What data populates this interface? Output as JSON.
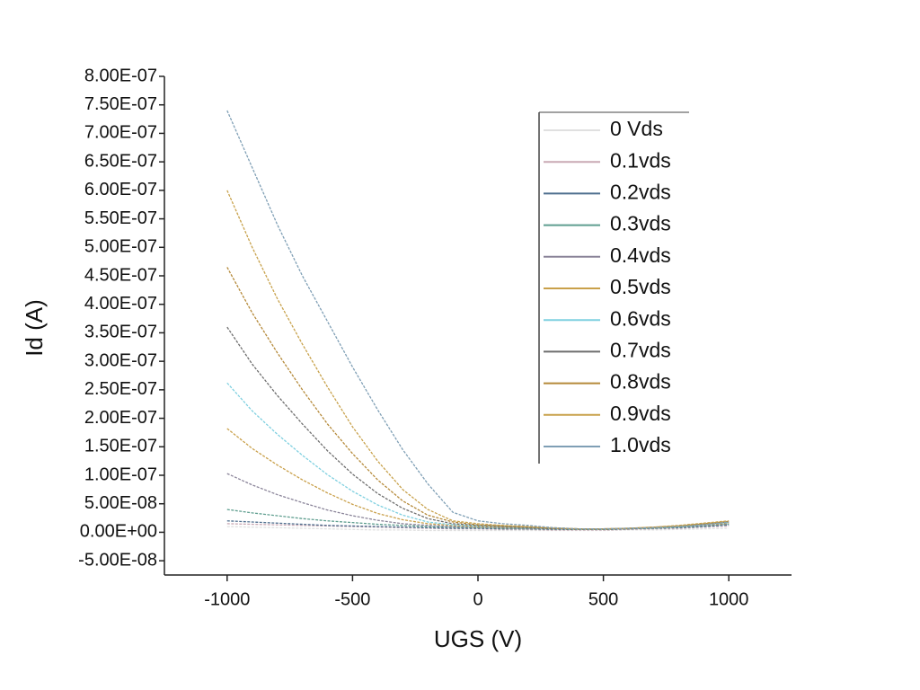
{
  "chart_data": {
    "type": "line",
    "x_label": "UGS (V)",
    "y_label": "Id (A)",
    "x": [
      -1000,
      -900,
      -800,
      -700,
      -600,
      -500,
      -400,
      -300,
      -200,
      -100,
      0,
      100,
      200,
      300,
      400,
      500,
      600,
      700,
      800,
      900,
      1000
    ],
    "xlim": [
      -1250,
      1250
    ],
    "xticks": [
      -1000,
      -500,
      0,
      500,
      1000
    ],
    "ylim": [
      -7.5e-08,
      8e-07
    ],
    "yticks": [
      {
        "value": -5e-08,
        "label": "-5.00E-08"
      },
      {
        "value": 0,
        "label": "0.00E+00"
      },
      {
        "value": 5e-08,
        "label": "5.00E-08"
      },
      {
        "value": 1e-07,
        "label": "1.00E-07"
      },
      {
        "value": 1.5e-07,
        "label": "1.50E-07"
      },
      {
        "value": 2e-07,
        "label": "2.00E-07"
      },
      {
        "value": 2.5e-07,
        "label": "2.50E-07"
      },
      {
        "value": 3e-07,
        "label": "3.00E-07"
      },
      {
        "value": 3.5e-07,
        "label": "3.50E-07"
      },
      {
        "value": 4e-07,
        "label": "4.00E-07"
      },
      {
        "value": 4.5e-07,
        "label": "4.50E-07"
      },
      {
        "value": 5e-07,
        "label": "5.00E-07"
      },
      {
        "value": 5.5e-07,
        "label": "5.50E-07"
      },
      {
        "value": 6e-07,
        "label": "6.00E-07"
      },
      {
        "value": 6.5e-07,
        "label": "6.50E-07"
      },
      {
        "value": 7e-07,
        "label": "7.00E-07"
      },
      {
        "value": 7.5e-07,
        "label": "7.50E-07"
      },
      {
        "value": 8e-07,
        "label": "8.00E-07"
      }
    ],
    "series": [
      {
        "name": "0 Vds",
        "color": "#e0e0e0",
        "values": [
          1e-08,
          9e-09,
          8e-09,
          7e-09,
          6e-09,
          5e-09,
          4e-09,
          4e-09,
          3e-09,
          3e-09,
          3e-09,
          3e-09,
          3e-09,
          3e-09,
          3e-09,
          3e-09,
          4e-09,
          4e-09,
          5e-09,
          6e-09,
          7e-09
        ]
      },
      {
        "name": "0.1vds",
        "color": "#c9a9b4",
        "values": [
          1.5e-08,
          1.4e-08,
          1.3e-08,
          1.2e-08,
          1.1e-08,
          1e-08,
          9e-09,
          8e-09,
          7e-09,
          6e-09,
          6e-09,
          5e-09,
          5e-09,
          4e-09,
          4e-09,
          4e-09,
          5e-09,
          6e-09,
          7e-09,
          9e-09,
          1.1e-08
        ]
      },
      {
        "name": "0.2vds",
        "color": "#4f6f8f",
        "values": [
          2e-08,
          1.8e-08,
          1.6e-08,
          1.4e-08,
          1.2e-08,
          1.1e-08,
          1e-08,
          9e-09,
          8e-09,
          7e-09,
          7e-09,
          6e-09,
          6e-09,
          5e-09,
          5e-09,
          5e-09,
          6e-09,
          7e-09,
          8e-09,
          1e-08,
          1.3e-08
        ]
      },
      {
        "name": "0.3vds",
        "color": "#5f9e8f",
        "values": [
          4e-08,
          3.4e-08,
          2.9e-08,
          2.4e-08,
          2e-08,
          1.7e-08,
          1.4e-08,
          1.2e-08,
          1e-08,
          9e-09,
          8e-09,
          7e-09,
          6e-09,
          6e-09,
          5e-09,
          5e-09,
          6e-09,
          7e-09,
          9e-09,
          1.1e-08,
          1.4e-08
        ]
      },
      {
        "name": "0.4vds",
        "color": "#8a8499",
        "values": [
          1.03e-07,
          8.3e-08,
          6.6e-08,
          5.2e-08,
          3.9e-08,
          2.9e-08,
          2.1e-08,
          1.5e-08,
          1.2e-08,
          1e-08,
          9e-09,
          8e-09,
          7e-09,
          6e-09,
          5e-09,
          5e-09,
          6e-09,
          8e-09,
          1e-08,
          1.2e-08,
          1.5e-08
        ]
      },
      {
        "name": "0.5vds",
        "color": "#c9a04a",
        "values": [
          1.82e-07,
          1.47e-07,
          1.18e-07,
          9.2e-08,
          6.9e-08,
          4.9e-08,
          3.3e-08,
          2.2e-08,
          1.5e-08,
          1.2e-08,
          1e-08,
          9e-09,
          8e-09,
          6e-09,
          5e-09,
          5e-09,
          6e-09,
          8e-09,
          1e-08,
          1.3e-08,
          1.6e-08
        ]
      },
      {
        "name": "0.6vds",
        "color": "#7fd0e0",
        "values": [
          2.62e-07,
          2.13e-07,
          1.72e-07,
          1.35e-07,
          1.01e-07,
          7.2e-08,
          4.8e-08,
          3e-08,
          1.8e-08,
          1.3e-08,
          1.1e-08,
          1e-08,
          8e-09,
          6e-09,
          5e-09,
          5e-09,
          6e-09,
          8e-09,
          1e-08,
          1.4e-08,
          1.7e-08
        ]
      },
      {
        "name": "0.7vds",
        "color": "#6e6e6e",
        "values": [
          3.6e-07,
          2.95e-07,
          2.4e-07,
          1.9e-07,
          1.43e-07,
          1.02e-07,
          6.8e-08,
          4.2e-08,
          2.4e-08,
          1.5e-08,
          1.2e-08,
          1e-08,
          8e-09,
          6e-09,
          5e-09,
          5e-09,
          6e-09,
          8e-09,
          1.1e-08,
          1.4e-08,
          1.8e-08
        ]
      },
      {
        "name": "0.8vds",
        "color": "#b58a3a",
        "values": [
          4.65e-07,
          3.85e-07,
          3.15e-07,
          2.5e-07,
          1.9e-07,
          1.38e-07,
          9.2e-08,
          5.5e-08,
          3e-08,
          1.8e-08,
          1.3e-08,
          1.1e-08,
          9e-09,
          7e-09,
          6e-09,
          6e-09,
          7e-09,
          9e-09,
          1.1e-08,
          1.5e-08,
          1.9e-08
        ]
      },
      {
        "name": "0.9vds",
        "color": "#c8a24c",
        "values": [
          6e-07,
          5e-07,
          4.1e-07,
          3.3e-07,
          2.55e-07,
          1.85e-07,
          1.25e-07,
          7.5e-08,
          4e-08,
          2e-08,
          1.5e-08,
          1.2e-08,
          1e-08,
          8e-09,
          6e-09,
          6e-09,
          7e-09,
          9e-09,
          1.2e-08,
          1.6e-08,
          2e-08
        ]
      },
      {
        "name": "1.0vds",
        "color": "#7f9fb5",
        "values": [
          7.4e-07,
          6.4e-07,
          5.4e-07,
          4.5e-07,
          3.7e-07,
          2.9e-07,
          2.15e-07,
          1.45e-07,
          8.5e-08,
          3.5e-08,
          2e-08,
          1.5e-08,
          1.2e-08,
          8e-09,
          6e-09,
          6e-09,
          7e-09,
          8e-09,
          1e-08,
          1.3e-08,
          1.8e-08
        ]
      }
    ]
  }
}
